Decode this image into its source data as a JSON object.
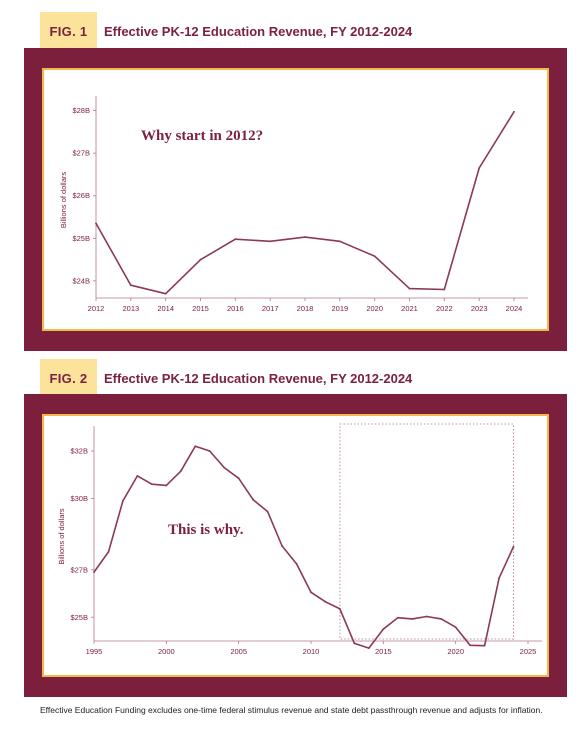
{
  "figures": [
    {
      "label": "FIG. 1",
      "title": "Effective PK-12 Education Revenue, FY 2012-2024"
    },
    {
      "label": "FIG. 2",
      "title": "Effective PK-12 Education Revenue, FY 2012-2024"
    }
  ],
  "footnote": "Effective Education Funding excludes one-time federal stimulus revenue and state debt passthrough revenue and adjusts for inflation.",
  "colors": {
    "line": "#8b3a4f",
    "panel": "#7c1f3d",
    "label_bg": "#fbe39b",
    "border": "#f2b84a"
  },
  "chart_data": [
    {
      "type": "line",
      "annotation": "Why start in 2012?",
      "ylabel": "Billions of dollars",
      "ylim": [
        23.6,
        28.2
      ],
      "xlim": [
        2012,
        2024
      ],
      "x_ticks": [
        2012,
        2013,
        2014,
        2015,
        2016,
        2017,
        2018,
        2019,
        2020,
        2021,
        2022,
        2023,
        2024
      ],
      "x_tick_labels": [
        "2012",
        "2013",
        "2014",
        "2015",
        "2016",
        "2017",
        "2018",
        "2019",
        "2020",
        "2021",
        "2022",
        "2023",
        "2024"
      ],
      "y_ticks": [
        24,
        25,
        26,
        27,
        28
      ],
      "y_tick_labels": [
        "$24B",
        "$25B",
        "$26B",
        "$27B",
        "$28B"
      ],
      "grid": false,
      "series": [
        {
          "x": [
            2012,
            2013,
            2014,
            2015,
            2016,
            2017,
            2018,
            2019,
            2020,
            2021,
            2022,
            2023,
            2024
          ],
          "values": [
            25.35,
            23.9,
            23.7,
            24.5,
            24.98,
            24.93,
            25.03,
            24.93,
            24.58,
            23.82,
            23.8,
            26.65,
            27.97
          ]
        }
      ]
    },
    {
      "type": "line",
      "annotation": "This is why.",
      "ylabel": "Billions of dollars",
      "ylim": [
        24,
        32.8
      ],
      "xlim": [
        1995,
        2025
      ],
      "x_ticks": [
        1995,
        2000,
        2005,
        2010,
        2015,
        2020,
        2025
      ],
      "x_tick_labels": [
        "1995",
        "2000",
        "2005",
        "2010",
        "2015",
        "2020",
        "2025"
      ],
      "y_ticks": [
        25,
        27,
        30,
        32
      ],
      "y_tick_labels": [
        "$25B",
        "$27B",
        "$30B",
        "$32B"
      ],
      "grid": false,
      "highlight_range": [
        2012,
        2024
      ],
      "series": [
        {
          "x": [
            1995,
            1996,
            1997,
            1998,
            1999,
            2000,
            2001,
            2002,
            2003,
            2004,
            2005,
            2006,
            2007,
            2008,
            2009,
            2010,
            2011,
            2012,
            2013,
            2014,
            2015,
            2016,
            2017,
            2018,
            2019,
            2020,
            2021,
            2022,
            2023,
            2024
          ],
          "values": [
            26.9,
            27.75,
            29.9,
            30.95,
            30.6,
            30.55,
            31.15,
            32.2,
            32.0,
            31.3,
            30.85,
            29.95,
            29.45,
            28.0,
            27.25,
            26.05,
            25.65,
            25.35,
            23.9,
            23.7,
            24.5,
            24.98,
            24.93,
            25.03,
            24.93,
            24.58,
            23.82,
            23.8,
            26.65,
            27.97
          ]
        }
      ]
    }
  ]
}
